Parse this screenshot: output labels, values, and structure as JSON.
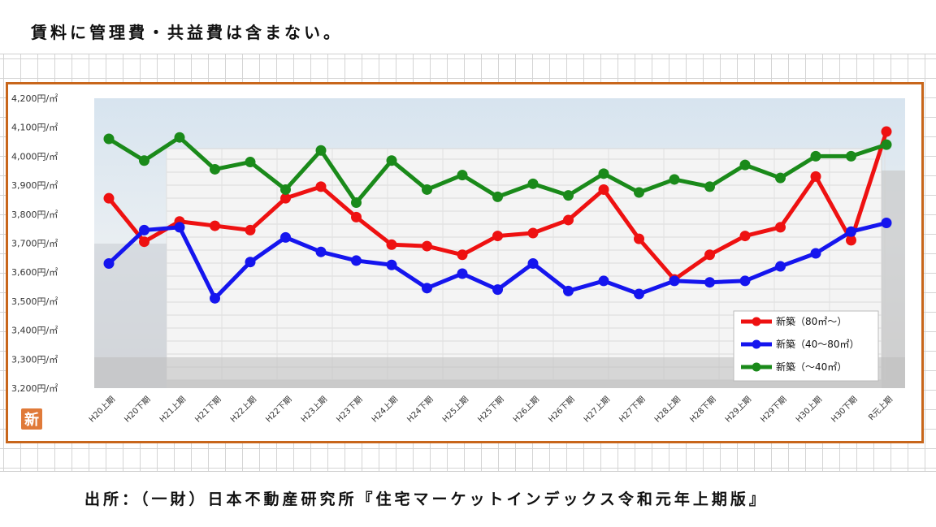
{
  "note": "賃料に管理費・共益費は含まない。",
  "source": "出所：（一財）日本不動産研究所『住宅マーケットインデックス令和元年上期版』",
  "badge": "新",
  "colors": {
    "frame": "#c8661b",
    "red": "#ee1111",
    "blue": "#1515ee",
    "green": "#1a8a1a"
  },
  "chart_data": {
    "type": "line",
    "title": "",
    "xlabel": "",
    "ylabel": "",
    "ylim": [
      3200,
      4200
    ],
    "ytick_labels": [
      "4,200円/㎡",
      "4,100円/㎡",
      "4,000円/㎡",
      "3,900円/㎡",
      "3,800円/㎡",
      "3,700円/㎡",
      "3,600円/㎡",
      "3,500円/㎡",
      "3,400円/㎡",
      "3,300円/㎡",
      "3,200円/㎡"
    ],
    "categories": [
      "H20上期",
      "H20下期",
      "H21上期",
      "H21下期",
      "H22上期",
      "H22下期",
      "H23上期",
      "H23下期",
      "H24上期",
      "H24下期",
      "H25上期",
      "H25下期",
      "H26上期",
      "H26下期",
      "H27上期",
      "H27下期",
      "H28上期",
      "H28下期",
      "H29上期",
      "H29下期",
      "H30上期",
      "H30下期",
      "R元上期"
    ],
    "legend_position": "bottom-right",
    "grid": false,
    "series": [
      {
        "name": "新築（80㎡～）",
        "color": "#ee1111",
        "values": [
          3855,
          3705,
          3775,
          3760,
          3745,
          3855,
          3895,
          3790,
          3695,
          3690,
          3660,
          3725,
          3735,
          3780,
          3885,
          3715,
          3575,
          3660,
          3725,
          3755,
          3930,
          3710,
          4085
        ]
      },
      {
        "name": "新築（40～80㎡）",
        "color": "#1515ee",
        "values": [
          3630,
          3745,
          3755,
          3510,
          3635,
          3720,
          3670,
          3640,
          3625,
          3545,
          3595,
          3540,
          3630,
          3535,
          3570,
          3525,
          3570,
          3565,
          3570,
          3620,
          3665,
          3740,
          3770
        ]
      },
      {
        "name": "新築（～40㎡）",
        "color": "#1a8a1a",
        "values": [
          4060,
          3985,
          4065,
          3955,
          3980,
          3885,
          4020,
          3840,
          3985,
          3885,
          3935,
          3860,
          3905,
          3865,
          3940,
          3875,
          3920,
          3895,
          3970,
          3925,
          4000,
          4000,
          4040
        ]
      }
    ]
  }
}
